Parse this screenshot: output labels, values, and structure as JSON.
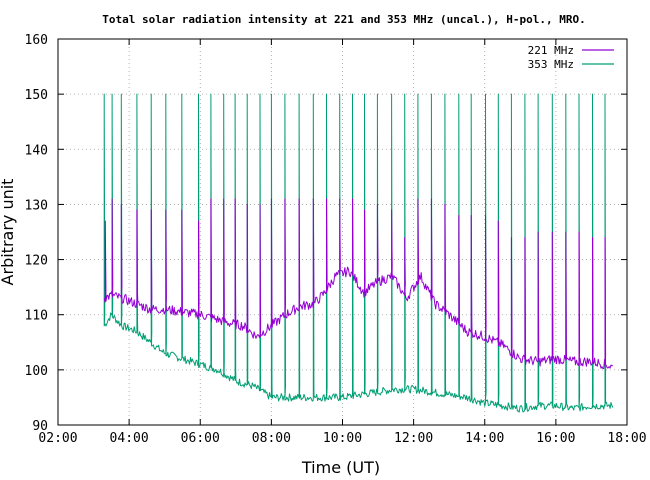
{
  "chart_data": {
    "type": "line",
    "title": "Total solar radiation intensity at 221 and 353 MHz (uncal.), H-pol., MRO.",
    "xlabel": "Time (UT)",
    "ylabel": "Arbitrary unit",
    "xlim": [
      "02:00",
      "18:00"
    ],
    "ylim": [
      90,
      160
    ],
    "x_ticks": [
      "02:00",
      "04:00",
      "06:00",
      "08:00",
      "10:00",
      "12:00",
      "14:00",
      "16:00",
      "18:00"
    ],
    "y_ticks": [
      "90",
      "100",
      "110",
      "120",
      "130",
      "140",
      "150",
      "160"
    ],
    "grid": true,
    "legend_position": "top-right",
    "x_units": "hours UT",
    "series": [
      {
        "name": "221 MHz",
        "color": "#9400d3",
        "baseline_points": [
          [
            3.3,
            113
          ],
          [
            3.5,
            113.5
          ],
          [
            3.8,
            113
          ],
          [
            4.2,
            112
          ],
          [
            4.6,
            111
          ],
          [
            5.0,
            111
          ],
          [
            5.5,
            110.5
          ],
          [
            6.0,
            110
          ],
          [
            6.3,
            109.5
          ],
          [
            6.8,
            108.5
          ],
          [
            7.2,
            108
          ],
          [
            7.6,
            106
          ],
          [
            8.0,
            108
          ],
          [
            8.4,
            110
          ],
          [
            8.8,
            111.5
          ],
          [
            9.2,
            112
          ],
          [
            9.5,
            114
          ],
          [
            9.8,
            117
          ],
          [
            10.2,
            118
          ],
          [
            10.6,
            114
          ],
          [
            11.0,
            116
          ],
          [
            11.4,
            117
          ],
          [
            11.8,
            113
          ],
          [
            12.2,
            117
          ],
          [
            12.6,
            112
          ],
          [
            13.0,
            110
          ],
          [
            13.5,
            107
          ],
          [
            14.0,
            106
          ],
          [
            14.5,
            104.5
          ],
          [
            15.0,
            102
          ],
          [
            15.5,
            101.5
          ],
          [
            16.0,
            102
          ],
          [
            16.5,
            101.5
          ],
          [
            17.0,
            101.5
          ],
          [
            17.4,
            101
          ],
          [
            17.6,
            100.5
          ]
        ],
        "spikes": [
          [
            3.33,
            127
          ],
          [
            3.52,
            131
          ],
          [
            3.78,
            130
          ],
          [
            4.22,
            129
          ],
          [
            4.62,
            129
          ],
          [
            5.03,
            129
          ],
          [
            5.48,
            129
          ],
          [
            5.95,
            127
          ],
          [
            6.3,
            131
          ],
          [
            6.66,
            131
          ],
          [
            6.98,
            131
          ],
          [
            7.32,
            130
          ],
          [
            7.68,
            130
          ],
          [
            8.0,
            131
          ],
          [
            8.38,
            131
          ],
          [
            8.78,
            131
          ],
          [
            9.18,
            131
          ],
          [
            9.55,
            131
          ],
          [
            9.92,
            131
          ],
          [
            10.28,
            131
          ],
          [
            10.62,
            129
          ],
          [
            10.98,
            130
          ],
          [
            11.38,
            129
          ],
          [
            11.75,
            124
          ],
          [
            12.12,
            131
          ],
          [
            12.5,
            131
          ],
          [
            12.88,
            130
          ],
          [
            13.27,
            128
          ],
          [
            13.62,
            128
          ],
          [
            14.02,
            128
          ],
          [
            14.38,
            127
          ],
          [
            14.75,
            124
          ],
          [
            15.13,
            124
          ],
          [
            15.5,
            125
          ],
          [
            15.9,
            125
          ],
          [
            16.28,
            125
          ],
          [
            16.65,
            125
          ],
          [
            17.03,
            124
          ],
          [
            17.38,
            124
          ],
          [
            17.62,
            124
          ]
        ]
      },
      {
        "name": "353 MHz",
        "color": "#009e73",
        "baseline_points": [
          [
            3.3,
            108
          ],
          [
            3.5,
            110
          ],
          [
            3.8,
            108
          ],
          [
            4.2,
            107
          ],
          [
            4.6,
            105
          ],
          [
            5.0,
            103
          ],
          [
            5.5,
            102
          ],
          [
            6.0,
            101
          ],
          [
            6.5,
            100
          ],
          [
            7.0,
            98
          ],
          [
            7.5,
            97
          ],
          [
            8.0,
            95
          ],
          [
            8.5,
            95
          ],
          [
            9.0,
            95
          ],
          [
            9.5,
            95
          ],
          [
            10.0,
            95
          ],
          [
            10.5,
            95.5
          ],
          [
            11.0,
            96
          ],
          [
            11.5,
            96.5
          ],
          [
            12.0,
            96.5
          ],
          [
            12.5,
            96
          ],
          [
            13.0,
            95.5
          ],
          [
            13.5,
            95
          ],
          [
            14.0,
            94
          ],
          [
            14.5,
            93.5
          ],
          [
            15.0,
            93
          ],
          [
            15.5,
            93.5
          ],
          [
            16.0,
            93.5
          ],
          [
            16.5,
            93
          ],
          [
            17.0,
            93.5
          ],
          [
            17.6,
            93.5
          ]
        ],
        "spikes": [
          [
            3.3,
            150
          ],
          [
            3.52,
            150
          ],
          [
            3.78,
            150
          ],
          [
            4.22,
            150
          ],
          [
            4.62,
            150
          ],
          [
            5.03,
            150
          ],
          [
            5.48,
            150
          ],
          [
            5.95,
            150
          ],
          [
            6.3,
            150
          ],
          [
            6.66,
            150
          ],
          [
            6.98,
            150
          ],
          [
            7.32,
            150
          ],
          [
            7.68,
            150
          ],
          [
            8.0,
            150
          ],
          [
            8.38,
            150
          ],
          [
            8.78,
            150
          ],
          [
            9.18,
            150
          ],
          [
            9.55,
            150
          ],
          [
            9.92,
            150
          ],
          [
            10.28,
            150
          ],
          [
            10.62,
            150
          ],
          [
            10.98,
            150
          ],
          [
            11.38,
            150
          ],
          [
            11.75,
            150
          ],
          [
            12.12,
            150
          ],
          [
            12.5,
            150
          ],
          [
            12.88,
            150
          ],
          [
            13.27,
            150
          ],
          [
            13.62,
            150
          ],
          [
            14.02,
            150
          ],
          [
            14.38,
            150
          ],
          [
            14.75,
            150
          ],
          [
            15.13,
            150
          ],
          [
            15.5,
            150
          ],
          [
            15.9,
            150
          ],
          [
            16.28,
            150
          ],
          [
            16.65,
            150
          ],
          [
            17.03,
            150
          ],
          [
            17.38,
            150
          ],
          [
            17.62,
            150
          ]
        ]
      }
    ]
  }
}
